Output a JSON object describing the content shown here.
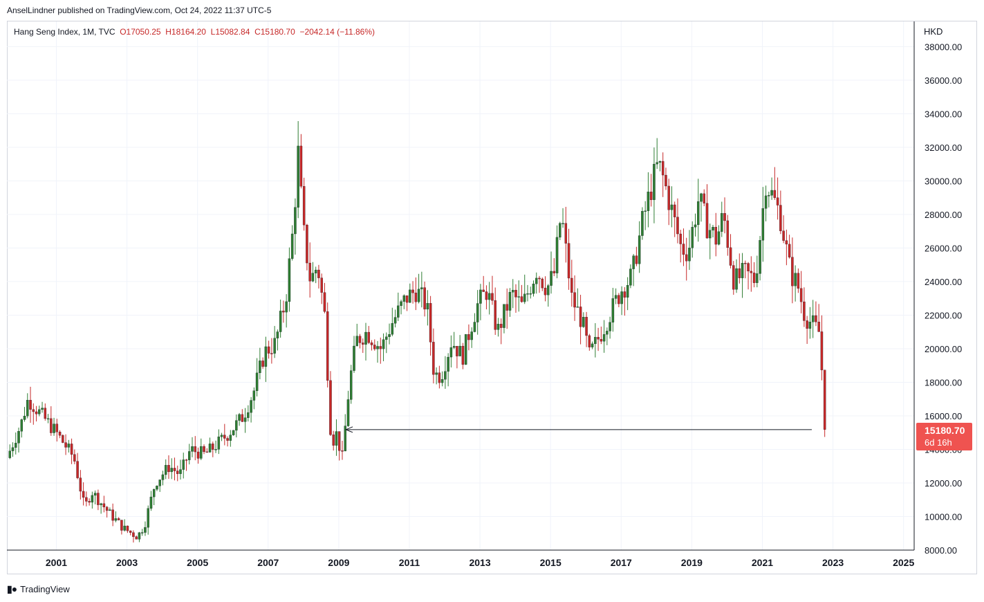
{
  "header": {
    "published_by": "AnselLindner published on TradingView.com, Oct 24, 2022 11:37 UTC-5"
  },
  "legend": {
    "symbol": "Hang Seng Index, 1M, TVC",
    "open": "O17050.25",
    "high": "H18164.20",
    "low": "L15082.84",
    "close": "C15180.70",
    "change": "−2042.14 (−11.86%)"
  },
  "currency": "HKD",
  "price_label": {
    "value": "15180.70",
    "countdown": "6d 16h"
  },
  "footer": {
    "brand": "TradingView"
  },
  "colors": {
    "up": "#2e7d32",
    "down": "#c62828",
    "grid": "#f0f3fa",
    "axis": "#131722",
    "badge": "#ef5350"
  },
  "chart_data": {
    "type": "line",
    "title": "",
    "xlabel": "",
    "ylabel": "HKD",
    "ylim": [
      8000,
      39500
    ],
    "xlim": [
      1999.6,
      2025.3
    ],
    "x_ticks": [
      "2001",
      "2003",
      "2005",
      "2007",
      "2009",
      "2011",
      "2013",
      "2015",
      "2017",
      "2019",
      "2021",
      "2023",
      "2025"
    ],
    "y_ticks": [
      "8000.00",
      "10000.00",
      "12000.00",
      "14000.00",
      "16000.00",
      "18000.00",
      "20000.00",
      "22000.00",
      "24000.00",
      "26000.00",
      "28000.00",
      "30000.00",
      "32000.00",
      "34000.00",
      "36000.00",
      "38000.00"
    ],
    "series": [
      {
        "x": [
          1999.6,
          2000.0,
          2000.2,
          2000.8,
          2001.0,
          2001.5,
          2001.8,
          2002.0,
          2002.5,
          2002.9,
          2003.3,
          2003.5,
          2003.8,
          2004.2,
          2004.5,
          2004.8,
          2005.2,
          2005.5,
          2005.9,
          2006.3,
          2006.6,
          2006.9,
          2007.2,
          2007.5,
          2007.7,
          2007.85,
          2008.0,
          2008.2,
          2008.4,
          2008.6,
          2008.8,
          2008.9,
          2009.1,
          2009.3,
          2009.5,
          2009.8,
          2010.2,
          2010.5,
          2010.9,
          2011.2,
          2011.5,
          2011.7,
          2011.9,
          2012.2,
          2012.5,
          2012.9,
          2013.2,
          2013.5,
          2013.9,
          2014.2,
          2014.6,
          2014.9,
          2015.1,
          2015.3,
          2015.6,
          2015.9,
          2016.1,
          2016.4,
          2016.8,
          2017.0,
          2017.3,
          2017.6,
          2017.9,
          2018.05,
          2018.2,
          2018.4,
          2018.7,
          2018.9,
          2019.2,
          2019.4,
          2019.7,
          2019.9,
          2020.2,
          2020.5,
          2020.8,
          2021.0,
          2021.1,
          2021.3,
          2021.5,
          2021.8,
          2022.0,
          2022.2,
          2022.4,
          2022.6,
          2022.75
        ],
        "values": [
          13500,
          15500,
          17000,
          15500,
          15000,
          13500,
          10500,
          11500,
          10200,
          9300,
          8800,
          9500,
          12000,
          13000,
          12500,
          14000,
          13700,
          14200,
          15000,
          16000,
          17500,
          19800,
          20300,
          23000,
          27000,
          31600,
          27000,
          24000,
          25000,
          22000,
          14000,
          15200,
          13500,
          17900,
          20500,
          21000,
          20000,
          21500,
          23000,
          23500,
          22500,
          18500,
          18400,
          20500,
          19500,
          22500,
          23500,
          21000,
          23300,
          22500,
          24700,
          23600,
          24500,
          28100,
          23000,
          21600,
          19600,
          20800,
          22600,
          23500,
          24300,
          27500,
          30000,
          31000,
          30100,
          28500,
          26000,
          25800,
          29000,
          27500,
          26500,
          28000,
          24000,
          24500,
          24100,
          28000,
          30000,
          29000,
          28000,
          24500,
          23800,
          22000,
          21500,
          21000,
          17000
        ]
      }
    ],
    "last_value": 15180.7,
    "annotation": "arrow from 2022.7 to 2009.2 at 15180.70 (horizontal line to prior low)"
  }
}
